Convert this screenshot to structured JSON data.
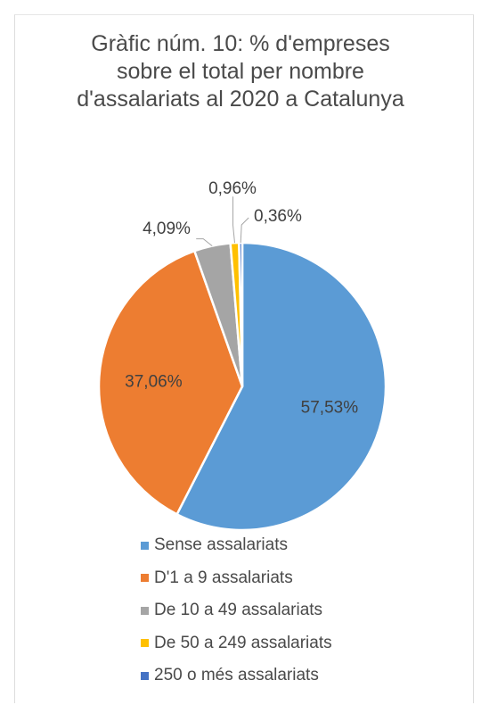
{
  "chart_data": {
    "type": "pie",
    "title_lines": [
      "Gràfic núm. 10: % d'empreses",
      "sobre el total per nombre",
      "d'assalariats al 2020 a Catalunya"
    ],
    "categories": [
      "Sense assalariats",
      "D'1 a 9 assalariats",
      "De 10 a 49 assalariats",
      "De 50 a 249 assalariats",
      "250 o més assalariats"
    ],
    "values": [
      57.53,
      37.06,
      4.09,
      0.96,
      0.36
    ],
    "labels": [
      "57,53%",
      "37,06%",
      "4,09%",
      "0,96%",
      "0,36%"
    ],
    "colors": [
      "#5b9bd5",
      "#ed7d31",
      "#a5a5a5",
      "#ffc000",
      "#4472c4"
    ],
    "legend_position": "bottom"
  }
}
